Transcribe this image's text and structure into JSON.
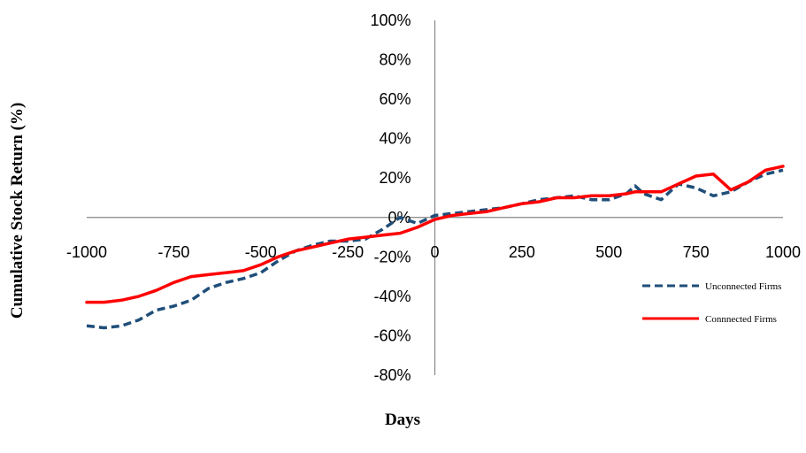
{
  "chart_data": {
    "type": "line",
    "xlabel": "Days",
    "ylabel": "Cumulative Stock Return (%)",
    "xlim": [
      -1000,
      1000
    ],
    "ylim": [
      -0.8,
      1.0
    ],
    "x_ticks": [
      "-1000",
      "-750",
      "-500",
      "-250",
      "0",
      "250",
      "500",
      "750",
      "1000"
    ],
    "y_ticks": [
      "100%",
      "80%",
      "60%",
      "40%",
      "20%",
      "0%",
      "-20%",
      "-40%",
      "-60%",
      "-80%"
    ],
    "grid": false,
    "legend_position": "right",
    "series": [
      {
        "name": "Unconnected Firms",
        "color": "#1f4e79",
        "style": "dashed",
        "x": [
          -1000,
          -950,
          -900,
          -850,
          -800,
          -750,
          -700,
          -650,
          -600,
          -550,
          -500,
          -450,
          -400,
          -350,
          -300,
          -250,
          -200,
          -150,
          -100,
          -50,
          0,
          50,
          100,
          150,
          200,
          250,
          300,
          350,
          400,
          450,
          500,
          550,
          575,
          600,
          650,
          700,
          750,
          800,
          850,
          900,
          950,
          1000
        ],
        "y": [
          -0.55,
          -0.56,
          -0.55,
          -0.52,
          -0.47,
          -0.45,
          -0.42,
          -0.36,
          -0.33,
          -0.31,
          -0.28,
          -0.22,
          -0.17,
          -0.14,
          -0.12,
          -0.12,
          -0.11,
          -0.06,
          0.0,
          -0.03,
          0.01,
          0.02,
          0.03,
          0.04,
          0.05,
          0.07,
          0.09,
          0.1,
          0.11,
          0.09,
          0.09,
          0.12,
          0.16,
          0.12,
          0.09,
          0.17,
          0.15,
          0.11,
          0.13,
          0.18,
          0.22,
          0.24
        ]
      },
      {
        "name": "Connnected Firms",
        "color": "#ff0000",
        "style": "solid",
        "x": [
          -1000,
          -950,
          -900,
          -850,
          -800,
          -750,
          -700,
          -650,
          -600,
          -550,
          -500,
          -450,
          -400,
          -350,
          -300,
          -250,
          -200,
          -150,
          -100,
          -50,
          0,
          50,
          100,
          150,
          200,
          250,
          300,
          350,
          400,
          450,
          500,
          550,
          575,
          600,
          650,
          700,
          750,
          800,
          850,
          900,
          950,
          1000
        ],
        "y": [
          -0.43,
          -0.43,
          -0.42,
          -0.4,
          -0.37,
          -0.33,
          -0.3,
          -0.29,
          -0.28,
          -0.27,
          -0.24,
          -0.2,
          -0.17,
          -0.15,
          -0.13,
          -0.11,
          -0.1,
          -0.09,
          -0.08,
          -0.05,
          -0.01,
          0.01,
          0.02,
          0.03,
          0.05,
          0.07,
          0.08,
          0.1,
          0.1,
          0.11,
          0.11,
          0.12,
          0.13,
          0.13,
          0.13,
          0.17,
          0.21,
          0.22,
          0.14,
          0.18,
          0.24,
          0.26
        ]
      }
    ]
  }
}
